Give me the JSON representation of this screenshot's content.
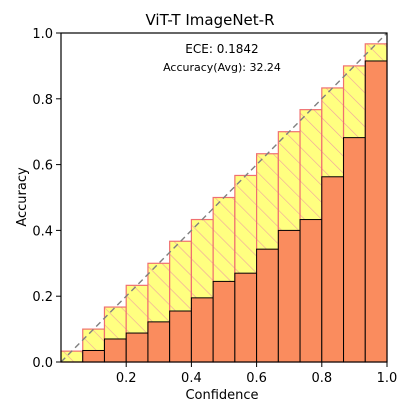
{
  "chart_data": {
    "type": "bar",
    "title": "ViT-T  ImageNet-R",
    "xlabel": "Confidence",
    "ylabel": "Accuracy",
    "xlim": [
      0,
      1
    ],
    "ylim": [
      0,
      1
    ],
    "xticks": [
      "0.2",
      "0.4",
      "0.6",
      "0.8",
      "1.0"
    ],
    "yticks": [
      "0.0",
      "0.2",
      "0.4",
      "0.6",
      "0.8",
      "1.0"
    ],
    "bin_edges": [
      0.0,
      0.0667,
      0.1333,
      0.2,
      0.2667,
      0.3333,
      0.4,
      0.4667,
      0.5333,
      0.6,
      0.6667,
      0.7333,
      0.8,
      0.8667,
      0.9333,
      1.0
    ],
    "series": [
      {
        "name": "accuracy",
        "values": [
          0.0,
          0.035,
          0.07,
          0.088,
          0.122,
          0.155,
          0.195,
          0.245,
          0.27,
          0.343,
          0.4,
          0.433,
          0.563,
          0.682,
          0.915
        ]
      },
      {
        "name": "gap",
        "values": [
          0.033,
          0.1,
          0.167,
          0.233,
          0.3,
          0.367,
          0.433,
          0.5,
          0.567,
          0.633,
          0.7,
          0.767,
          0.833,
          0.9,
          0.967
        ]
      }
    ],
    "annotations": [
      "ECE: 0.1842",
      "Accuracy(Avg): 32.24"
    ],
    "diagonal": true,
    "colors": {
      "accuracy": "#fa8c5e",
      "gap_fill": "#ffff80",
      "gap_edge": "#f07070",
      "hatch": "#f0a0a0",
      "diagonal": "#808080"
    }
  }
}
